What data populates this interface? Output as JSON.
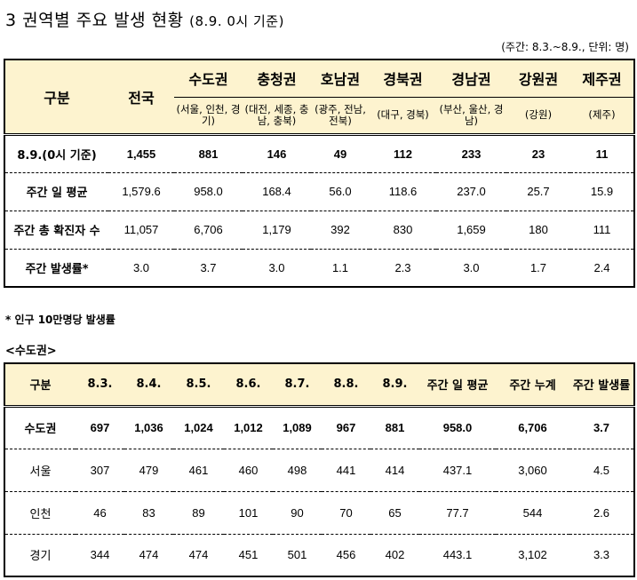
{
  "title": "3 권역별 주요 발생 현황",
  "title_sub": "(8.9. 0시 기준)",
  "unit_note": "(주간: 8.3.~8.9., 단위: 명)",
  "table1": {
    "headers": {
      "gubun": "구분",
      "total": "전국",
      "regions": [
        {
          "name": "수도권",
          "sub": "(서울, 인천, 경기)"
        },
        {
          "name": "충청권",
          "sub": "(대전, 세종, 충남, 충북)"
        },
        {
          "name": "호남권",
          "sub": "(광주, 전남, 전북)"
        },
        {
          "name": "경북권",
          "sub": "(대구, 경북)"
        },
        {
          "name": "경남권",
          "sub": "(부산, 울산, 경남)"
        },
        {
          "name": "강원권",
          "sub": "(강원)"
        },
        {
          "name": "제주권",
          "sub": "(제주)"
        }
      ]
    },
    "rows": [
      {
        "label": "8.9.(0시 기준)",
        "values": [
          "1,455",
          "881",
          "146",
          "49",
          "112",
          "233",
          "23",
          "11"
        ]
      },
      {
        "label": "주간 일 평균",
        "values": [
          "1,579.6",
          "958.0",
          "168.4",
          "56.0",
          "118.6",
          "237.0",
          "25.7",
          "15.9"
        ]
      },
      {
        "label": "주간 총 확진자 수",
        "values": [
          "11,057",
          "6,706",
          "1,179",
          "392",
          "830",
          "1,659",
          "180",
          "111"
        ]
      },
      {
        "label": "주간 발생률*",
        "values": [
          "3.0",
          "3.7",
          "3.0",
          "1.1",
          "2.3",
          "3.0",
          "1.7",
          "2.4"
        ]
      }
    ]
  },
  "footnote": "* 인구 10만명당 발생률",
  "section_label": "<수도권>",
  "table2": {
    "headers": [
      "구분",
      "8.3.",
      "8.4.",
      "8.5.",
      "8.6.",
      "8.7.",
      "8.8.",
      "8.9.",
      "주간 일 평균",
      "주간 누계",
      "주간 발생률"
    ],
    "rows": [
      {
        "label": "수도권",
        "values": [
          "697",
          "1,036",
          "1,024",
          "1,012",
          "1,089",
          "967",
          "881",
          "958.0",
          "6,706",
          "3.7"
        ]
      },
      {
        "label": "서울",
        "values": [
          "307",
          "479",
          "461",
          "460",
          "498",
          "441",
          "414",
          "437.1",
          "3,060",
          "4.5"
        ]
      },
      {
        "label": "인천",
        "values": [
          "46",
          "83",
          "89",
          "101",
          "90",
          "70",
          "65",
          "77.7",
          "544",
          "2.6"
        ]
      },
      {
        "label": "경기",
        "values": [
          "344",
          "474",
          "474",
          "451",
          "501",
          "456",
          "402",
          "443.1",
          "3,102",
          "3.3"
        ]
      }
    ]
  }
}
